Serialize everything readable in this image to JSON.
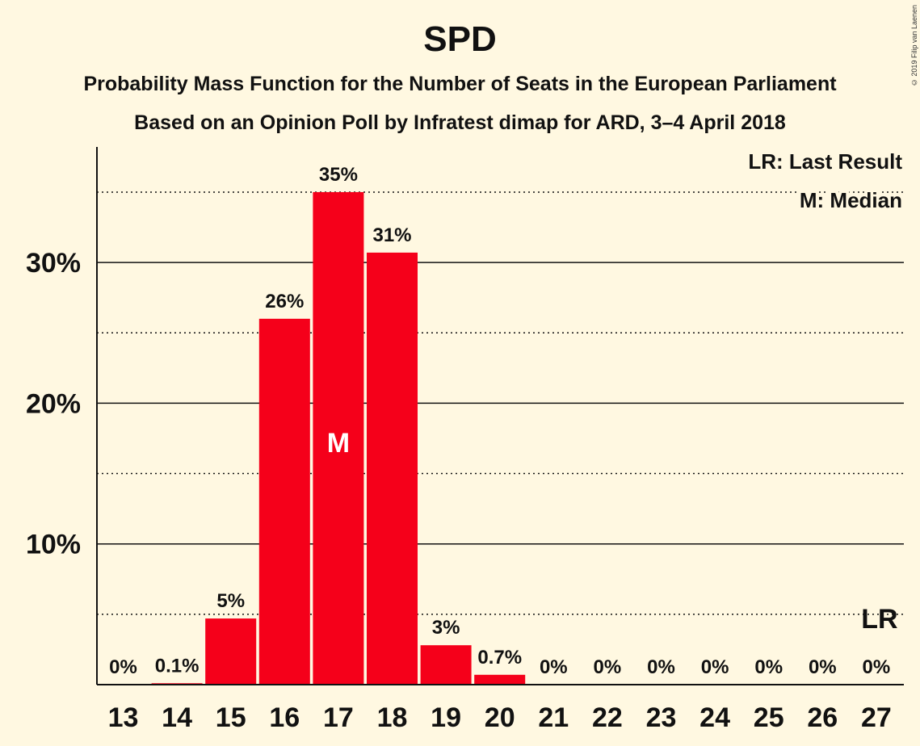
{
  "title": "SPD",
  "subtitle1": "Probability Mass Function for the Number of Seats in the European Parliament",
  "subtitle2": "Based on an Opinion Poll by Infratest dimap for ARD, 3–4 April 2018",
  "copyright": "© 2019 Filip van Laenen",
  "legend": {
    "lr": "LR: Last Result",
    "m": "M: Median"
  },
  "colors": {
    "bar": "#F5001A",
    "background": "#FFF8E1",
    "text": "#111111"
  },
  "chart_data": {
    "type": "bar",
    "categories": [
      "13",
      "14",
      "15",
      "16",
      "17",
      "18",
      "19",
      "20",
      "21",
      "22",
      "23",
      "24",
      "25",
      "26",
      "27"
    ],
    "values": [
      0,
      0.1,
      4.7,
      26,
      35,
      30.7,
      2.8,
      0.7,
      0,
      0,
      0,
      0,
      0,
      0,
      0
    ],
    "data_labels": [
      "0%",
      "0.1%",
      "5%",
      "26%",
      "35%",
      "31%",
      "3%",
      "0.7%",
      "0%",
      "0%",
      "0%",
      "0%",
      "0%",
      "0%",
      "0%"
    ],
    "ylim": [
      0,
      38
    ],
    "yticks": [
      10,
      20,
      30
    ],
    "ytick_labels": [
      "10%",
      "20%",
      "30%"
    ],
    "minor_gridlines": [
      5,
      15,
      25,
      35
    ],
    "median_category": "17",
    "median_label": "M",
    "last_result_category": "27",
    "last_result_label": "LR",
    "legend_position": "top-right"
  }
}
